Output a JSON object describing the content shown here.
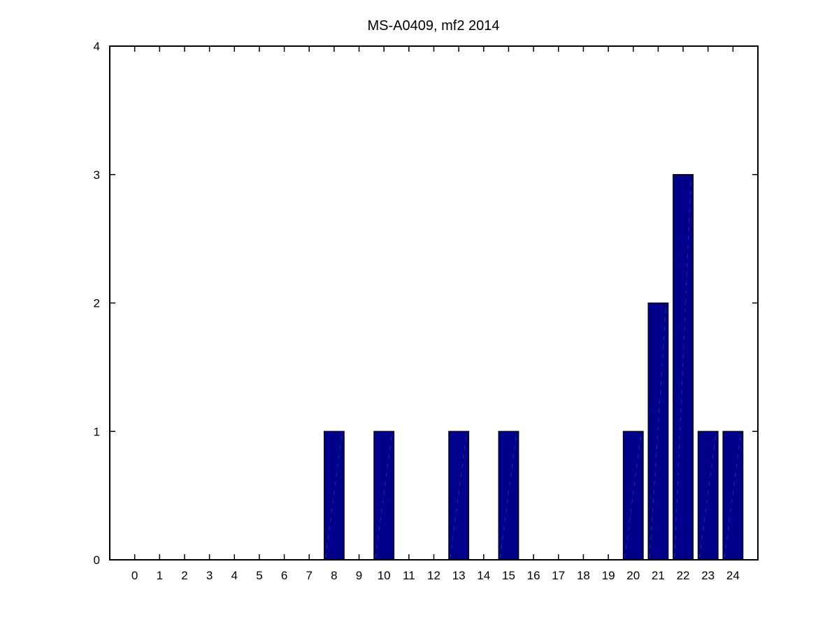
{
  "figure": {
    "background": "#ffffff"
  },
  "chart_data": {
    "type": "bar",
    "title": "MS-A0409, mf2 2014",
    "xlabel": "",
    "ylabel": "",
    "categories": [
      0,
      1,
      2,
      3,
      4,
      5,
      6,
      7,
      8,
      9,
      10,
      11,
      12,
      13,
      14,
      15,
      16,
      17,
      18,
      19,
      20,
      21,
      22,
      23,
      24
    ],
    "values": [
      0,
      0,
      0,
      0,
      0,
      0,
      0,
      0,
      1,
      0,
      1,
      0,
      0,
      1,
      0,
      1,
      0,
      0,
      0,
      0,
      1,
      2,
      3,
      1,
      1
    ],
    "xlim": [
      -1,
      25
    ],
    "ylim": [
      0,
      4
    ],
    "xticks": [
      0,
      1,
      2,
      3,
      4,
      5,
      6,
      7,
      8,
      9,
      10,
      11,
      12,
      13,
      14,
      15,
      16,
      17,
      18,
      19,
      20,
      21,
      22,
      23,
      24
    ],
    "yticks": [
      0,
      1,
      2,
      3,
      4
    ],
    "bar_width": 0.8,
    "grid": false,
    "legend": null,
    "tick_direction": "in",
    "box": true
  },
  "colors": {
    "bar_fill": "#00008a",
    "bar_edge": "#000000",
    "bar_inner_dash": "#4b4bae",
    "axis": "#000000",
    "text": "#000000"
  }
}
